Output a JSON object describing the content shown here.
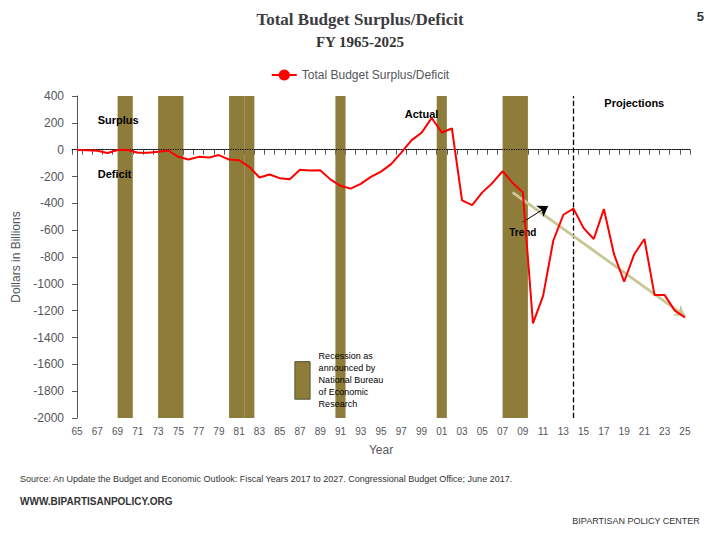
{
  "chart_data": {
    "type": "line",
    "title": "Total Budget Surplus/Deficit",
    "subtitle": "FY 1965-2025",
    "page_number": "5",
    "xlabel": "Year",
    "ylabel": "Dollars in Billions",
    "categories": [
      "65",
      null,
      "67",
      null,
      "69",
      null,
      "71",
      null,
      "73",
      null,
      "75",
      null,
      "77",
      null,
      "79",
      null,
      "81",
      null,
      "83",
      null,
      "85",
      null,
      "87",
      null,
      "89",
      null,
      "91",
      null,
      "93",
      null,
      "95",
      null,
      "97",
      null,
      "99",
      null,
      "01",
      null,
      "03",
      null,
      "05",
      null,
      "07",
      null,
      "09",
      null,
      "11",
      null,
      "13",
      null,
      "15",
      null,
      "17",
      null,
      "19",
      null,
      "21",
      null,
      "23",
      null,
      "25"
    ],
    "series": [
      {
        "name": "Total Budget Surplus/Deficit",
        "color": "#ff0000",
        "values": [
          -1.6,
          -3.7,
          -8.6,
          -25.2,
          -2.8,
          -2.8,
          -23.0,
          -23.4,
          -14.9,
          -6.1,
          -53.2,
          -73.7,
          -53.6,
          -59.2,
          -40.2,
          -73.8,
          -79.0,
          -128.0,
          -207.8,
          -185.4,
          -212.3,
          -221.2,
          -149.8,
          -155.2,
          -152.6,
          -221.4,
          -269.2,
          -290.4,
          -255.1,
          -203.2,
          -164.0,
          -107.5,
          -21.9,
          69.2,
          125.6,
          236.2,
          128.2,
          157.8,
          -377.6,
          -412.7,
          -318.3,
          -248.2,
          -160.7,
          -248.2,
          -318.3,
          -1294.1,
          -1089.4,
          -680.2,
          -485.1,
          -439.3,
          -584.7,
          -665.7,
          -442.8,
          -779.1,
          -984.4,
          -779.1,
          -665.7,
          -1084.0,
          -1084.0,
          -1200.0,
          -1250.0
        ]
      }
    ],
    "ylim": [
      -2000,
      400
    ],
    "yticks": [
      400,
      200,
      0,
      -200,
      -400,
      -600,
      -800,
      -1000,
      -1200,
      -1400,
      -1600,
      -1800,
      -2000
    ],
    "grid": false,
    "legend": "top",
    "annotations": [
      {
        "text": "Surplus",
        "x": 1.5,
        "y": 220
      },
      {
        "text": "Deficit",
        "x": 1.5,
        "y": -185
      },
      {
        "text": "Actual",
        "x": 34,
        "y": 265
      },
      {
        "text": "Projections",
        "x": 55,
        "y": 350
      }
    ],
    "divider": {
      "x": 49,
      "color": "#000000"
    },
    "zero_line": {
      "y": 0,
      "color": "#000000"
    },
    "trend": {
      "text": "Trend",
      "start": [
        43,
        -320
      ],
      "end": [
        60,
        -1240
      ],
      "color": "#c8c896",
      "label_at": [
        44,
        -540
      ],
      "points_to": [
        46.5,
        -420
      ]
    },
    "recessions": {
      "text": "Recession as\nannounced by\nNational Bureau\nof Economic\nResearch",
      "color": "#8d7c3a",
      "bands": [
        [
          4,
          5.5
        ],
        [
          8,
          10.5
        ],
        [
          15,
          16.5
        ],
        [
          16.5,
          17.5
        ],
        [
          25.5,
          26.5
        ],
        [
          35.5,
          36.5
        ],
        [
          42,
          44.5
        ]
      ],
      "key_box": {
        "x": [
          21.5,
          23.0
        ],
        "y": [
          -1860,
          -1580
        ]
      },
      "key_text_at": [
        23.3,
        -1720
      ]
    },
    "source": "Source: An Update the Budget and Economic Outlook: Fiscal Years 2017 to 2027. Congressional Budget Office; June 2017.",
    "website": "WWW.BIPARTISANPOLICY.ORG",
    "logo_text": "BIPARTISAN POLICY CENTER"
  }
}
